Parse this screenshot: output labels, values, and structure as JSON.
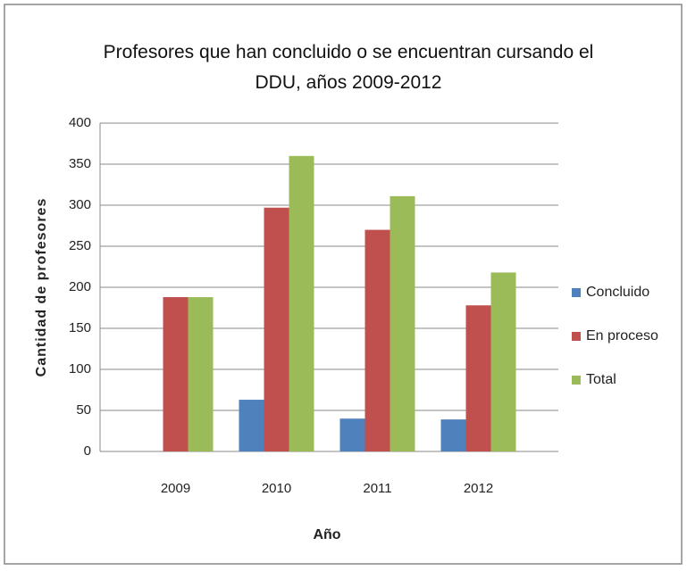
{
  "chart_data": {
    "type": "bar",
    "title": "Profesores que han concluido o se encuentran cursando el DDU, años 2009-2012",
    "categories": [
      "2009",
      "2010",
      "2011",
      "2012"
    ],
    "series": [
      {
        "name": "Concluido",
        "color": "#4f81bd",
        "values": [
          0,
          63,
          40,
          39
        ]
      },
      {
        "name": "En proceso",
        "color": "#c0504d",
        "values": [
          188,
          297,
          270,
          178
        ]
      },
      {
        "name": "Total",
        "color": "#9bbb59",
        "values": [
          188,
          360,
          311,
          218
        ]
      }
    ],
    "x_label": "Año",
    "y_label": "Cantidad de profesores",
    "ylim": [
      0,
      400
    ],
    "yticks": [
      0,
      50,
      100,
      150,
      200,
      250,
      300,
      350,
      400
    ],
    "grid": true,
    "legend": "right"
  }
}
